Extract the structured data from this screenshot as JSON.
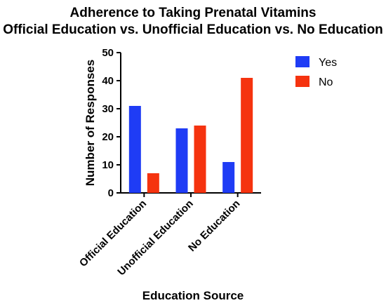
{
  "chart_data": {
    "type": "bar",
    "title": [
      "Adherence to Taking Prenatal Vitamins",
      "Official Education vs. Unofficial Education vs. No Education"
    ],
    "xlabel": "Education Source",
    "ylabel": "Number of Responses",
    "categories": [
      "Official Education",
      "Unofficial Education",
      "No Education"
    ],
    "series": [
      {
        "name": "Yes",
        "values": [
          31,
          23,
          11
        ],
        "color": "#1f3cf5"
      },
      {
        "name": "No",
        "values": [
          7,
          24,
          41
        ],
        "color": "#f5330f"
      }
    ],
    "ylim": [
      0,
      50
    ],
    "yticks": [
      0,
      10,
      20,
      30,
      40,
      50
    ],
    "grid": false,
    "legend": "top-right"
  }
}
